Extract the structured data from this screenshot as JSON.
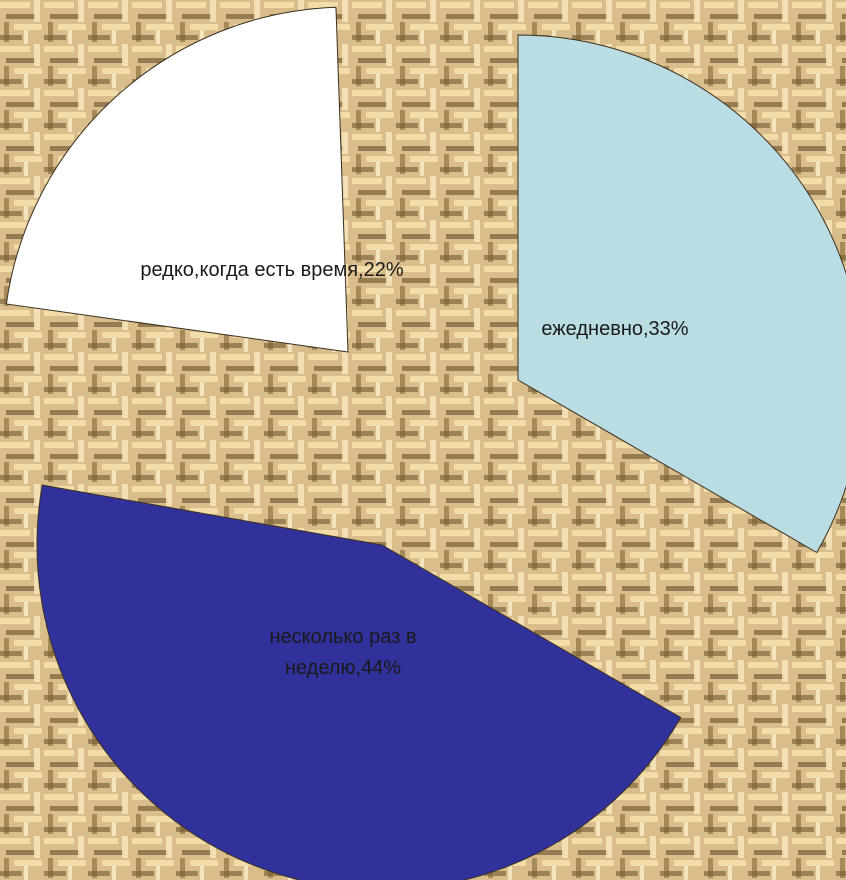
{
  "chart_data": {
    "type": "pie",
    "exploded": true,
    "slices": [
      {
        "label": "ежедневно,33%",
        "value": 33,
        "color": "#b9dde3"
      },
      {
        "label": "несколько раз в неделю,44%",
        "value": 44,
        "color": "#31319c"
      },
      {
        "label": "редко,когда есть время,22%",
        "value": 22,
        "color": "#ffffff"
      }
    ]
  },
  "colors": {
    "background_light": "#f2dca8",
    "background_dark": "#5c4520",
    "background_base": "#d9be8c"
  }
}
